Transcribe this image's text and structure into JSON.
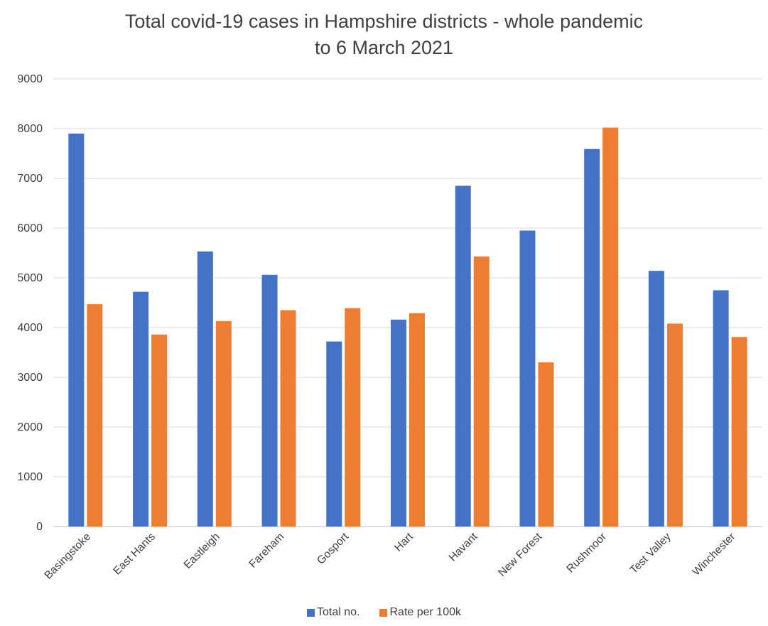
{
  "chart_data": {
    "type": "bar",
    "title_line1": "Total covid-19 cases in Hampshire districts - whole pandemic",
    "title_line2": "to 6 March 2021",
    "categories": [
      "Basingstoke",
      "East Hants",
      "Eastleigh",
      "Fareham",
      "Gosport",
      "Hart",
      "Havant",
      "New Forest",
      "Rushmoor",
      "Test Valley",
      "Winchester"
    ],
    "series": [
      {
        "name": "Total no.",
        "color": "#4472c4",
        "values": [
          7900,
          4720,
          5530,
          5060,
          3720,
          4160,
          6850,
          5950,
          7590,
          5140,
          4750
        ]
      },
      {
        "name": "Rate per 100k",
        "color": "#ed7d31",
        "values": [
          4470,
          3860,
          4130,
          4350,
          4390,
          4290,
          5430,
          3300,
          8020,
          4080,
          3810
        ]
      }
    ],
    "ylim": [
      0,
      9000
    ],
    "yticks": [
      "0",
      "1000",
      "2000",
      "3000",
      "4000",
      "5000",
      "6000",
      "7000",
      "8000",
      "9000"
    ],
    "grid": true,
    "legend_position": "bottom"
  }
}
